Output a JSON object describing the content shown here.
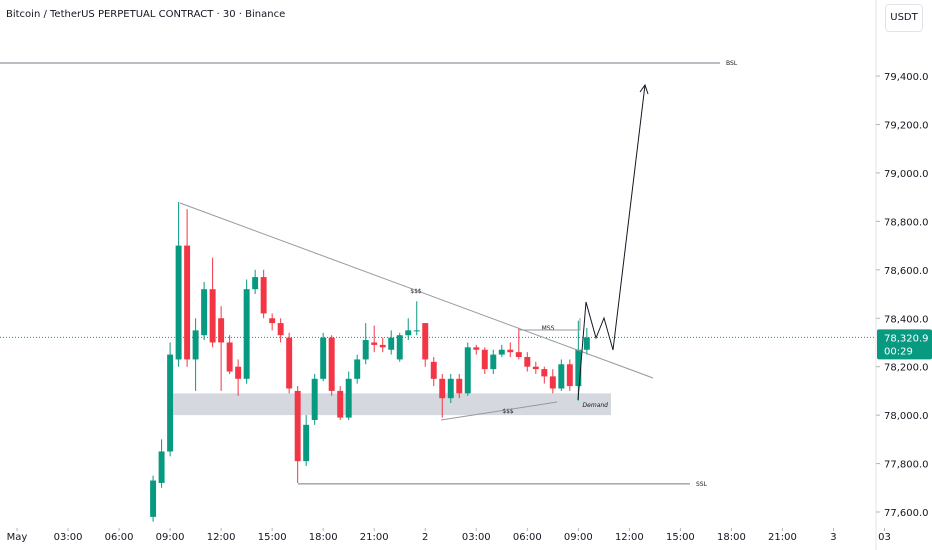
{
  "header": {
    "title": "Bitcoin / TetherUS PERPETUAL CONTRACT · 30 · Binance",
    "currency_button": "USDT"
  },
  "chart_data": {
    "type": "candlestick",
    "up_color": "#089981",
    "down_color": "#f23645",
    "x": [
      8,
      8.5,
      9,
      9.5,
      10,
      10.5,
      11,
      11.5,
      12,
      12.5,
      13,
      13.5,
      14,
      14.5,
      15,
      15.5,
      16,
      16.5,
      17,
      17.5,
      18,
      18.5,
      19,
      19.5,
      20,
      20.5,
      21,
      21.5,
      22,
      22.5,
      23,
      23.5,
      24,
      24.5,
      25,
      25.5,
      26,
      26.5,
      27,
      27.5,
      28,
      28.5,
      29,
      29.5,
      30,
      30.5,
      31,
      31.5,
      32,
      32.5,
      33,
      33.5
    ],
    "open": [
      77580,
      77720,
      77850,
      78230,
      78700,
      78230,
      78330,
      78520,
      78400,
      78300,
      78200,
      78150,
      78520,
      78570,
      78400,
      78380,
      78320,
      78100,
      77810,
      77980,
      78150,
      78320,
      78100,
      77990,
      78150,
      78230,
      78300,
      78290,
      78270,
      78230,
      78330,
      78350,
      78380,
      78220,
      78150,
      78070,
      78150,
      78090,
      78280,
      78270,
      78190,
      78250,
      78270,
      78260,
      78240,
      78200,
      78190,
      78160,
      78110,
      78210,
      78120,
      78270
    ],
    "high": [
      77750,
      77900,
      78300,
      78880,
      78850,
      78400,
      78550,
      78650,
      78450,
      78330,
      78230,
      78560,
      78600,
      78600,
      78420,
      78400,
      78340,
      78120,
      78000,
      78170,
      78340,
      78330,
      78120,
      78180,
      78250,
      78380,
      78370,
      78320,
      78350,
      78340,
      78400,
      78470,
      78380,
      78240,
      78170,
      78170,
      78170,
      78300,
      78290,
      78280,
      78270,
      78290,
      78300,
      78360,
      78260,
      78220,
      78200,
      78190,
      78230,
      78230,
      78390,
      78360
    ],
    "low": [
      77560,
      77700,
      77830,
      78200,
      78200,
      78100,
      78310,
      78280,
      78100,
      78170,
      78080,
      78130,
      78500,
      78400,
      78350,
      78300,
      78090,
      77720,
      77790,
      77960,
      78140,
      78080,
      77980,
      77980,
      78130,
      78210,
      78260,
      78260,
      78250,
      78220,
      78310,
      78330,
      78200,
      78120,
      77990,
      78050,
      78070,
      78080,
      78250,
      78170,
      78170,
      78240,
      78240,
      78230,
      78180,
      78170,
      78130,
      78090,
      78100,
      78100,
      78060,
      78250
    ],
    "close": [
      77730,
      77850,
      78250,
      78700,
      78230,
      78350,
      78520,
      78300,
      78300,
      78180,
      78150,
      78520,
      78570,
      78420,
      78380,
      78330,
      78110,
      77810,
      77960,
      78150,
      78320,
      78100,
      77990,
      78150,
      78230,
      78310,
      78290,
      78280,
      78320,
      78330,
      78350,
      78350,
      78230,
      78150,
      78070,
      78150,
      78090,
      78280,
      78270,
      78190,
      78250,
      78270,
      78260,
      78240,
      78200,
      78190,
      78160,
      78110,
      78210,
      78120,
      78270,
      78320.9
    ],
    "xlim": [
      -1,
      50.5
    ],
    "xticks": [
      {
        "value": 0,
        "label": "May"
      },
      {
        "value": 3,
        "label": "03:00"
      },
      {
        "value": 6,
        "label": "06:00"
      },
      {
        "value": 9,
        "label": "09:00"
      },
      {
        "value": 12,
        "label": "12:00"
      },
      {
        "value": 15,
        "label": "15:00"
      },
      {
        "value": 18,
        "label": "18:00"
      },
      {
        "value": 21,
        "label": "21:00"
      },
      {
        "value": 24,
        "label": "2"
      },
      {
        "value": 27,
        "label": "03:00"
      },
      {
        "value": 30,
        "label": "06:00"
      },
      {
        "value": 33,
        "label": "09:00"
      },
      {
        "value": 36,
        "label": "12:00"
      },
      {
        "value": 39,
        "label": "15:00"
      },
      {
        "value": 42,
        "label": "18:00"
      },
      {
        "value": 45,
        "label": "21:00"
      },
      {
        "value": 48,
        "label": "3"
      },
      {
        "value": 51,
        "label": "03"
      }
    ],
    "ylim": [
      77534,
      79714
    ],
    "yticks": [
      {
        "value": 77600,
        "label": "77,600.0"
      },
      {
        "value": 77800,
        "label": "77,800.0"
      },
      {
        "value": 78000,
        "label": "78,000.0"
      },
      {
        "value": 78200,
        "label": "78,200.0"
      },
      {
        "value": 78400,
        "label": "78,400.0"
      },
      {
        "value": 78600,
        "label": "78,600.0"
      },
      {
        "value": 78800,
        "label": "78,800.0"
      },
      {
        "value": 79000,
        "label": "79,000.0"
      },
      {
        "value": 79200,
        "label": "79,200.0"
      },
      {
        "value": 79400,
        "label": "79,400.0"
      }
    ],
    "last_price": {
      "value": 78320.9,
      "label": "78,320.9"
    },
    "countdown": "00:29",
    "levels": [
      {
        "label": "BSL",
        "value": 79454
      },
      {
        "label": "SSL",
        "value": 77716
      }
    ],
    "zone": {
      "label": "Demand",
      "from": 78000,
      "to": 78090
    },
    "annotations": [
      "$$$",
      "$$$",
      "MSS"
    ]
  }
}
